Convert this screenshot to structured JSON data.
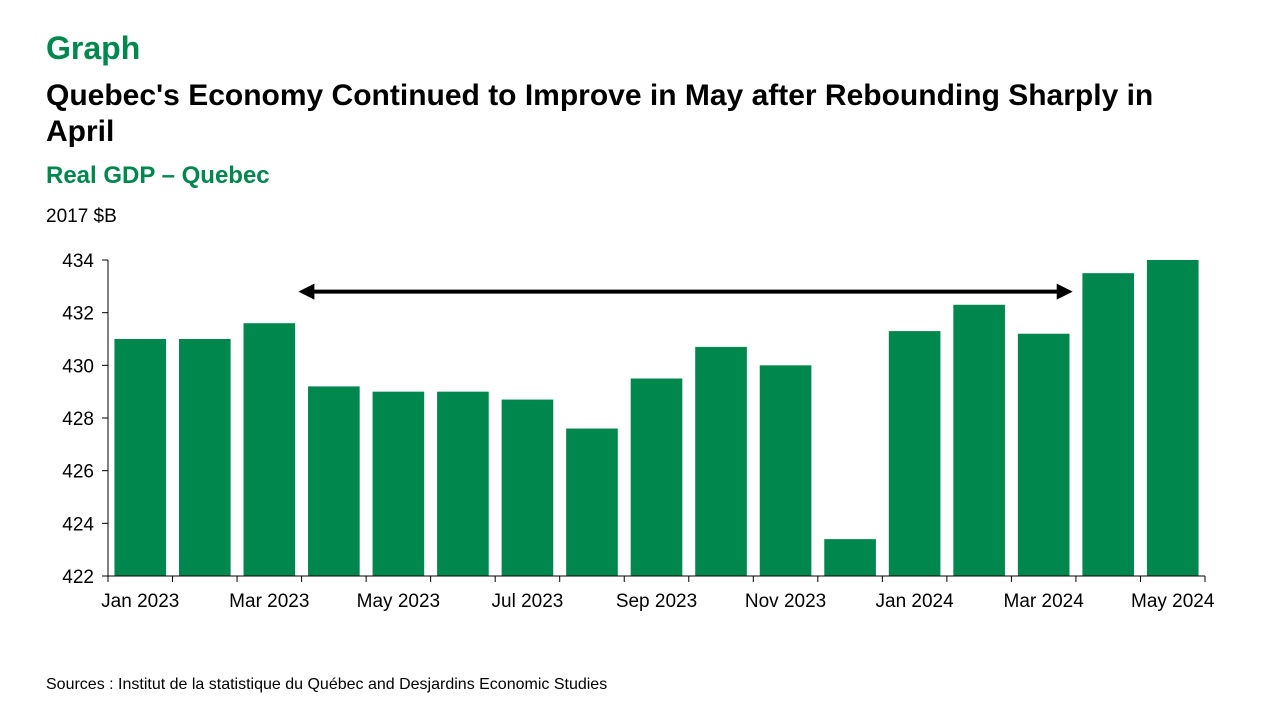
{
  "header": {
    "label": "Graph",
    "title": "Quebec's Economy Continued to Improve in May after Rebounding Sharply in April",
    "subtitle": "Real GDP – Quebec",
    "unit": "2017 $B"
  },
  "footer": {
    "source": "Sources : Institut de la statistique du Québec and Desjardins Economic Studies"
  },
  "chart_data": {
    "type": "bar",
    "title": "Real GDP – Quebec",
    "ylabel": "2017 $B",
    "xlabel": "",
    "categories": [
      "Jan 2023",
      "Feb 2023",
      "Mar 2023",
      "Apr 2023",
      "May 2023",
      "Jun 2023",
      "Jul 2023",
      "Aug 2023",
      "Sep 2023",
      "Oct 2023",
      "Nov 2023",
      "Dec 2023",
      "Jan 2024",
      "Feb 2024",
      "Mar 2024",
      "Apr 2024",
      "May 2024"
    ],
    "tick_labels": [
      "Jan 2023",
      "Mar 2023",
      "May 2023",
      "Jul 2023",
      "Sep 2023",
      "Nov 2023",
      "Jan 2024",
      "Mar 2024",
      "May 2024"
    ],
    "values": [
      431.0,
      431.0,
      431.6,
      429.2,
      429.0,
      429.0,
      428.7,
      427.6,
      429.5,
      430.7,
      430.0,
      423.4,
      431.3,
      432.3,
      431.2,
      433.5,
      434.0
    ],
    "ylim": [
      422,
      434
    ],
    "yticks": [
      422,
      424,
      426,
      428,
      430,
      432,
      434
    ],
    "bar_color": "#00874d",
    "grid": false,
    "legend": "none",
    "annotation": {
      "type": "double-arrow",
      "from": "Mar 2023",
      "to": "Apr 2024",
      "y": 432.8
    }
  }
}
